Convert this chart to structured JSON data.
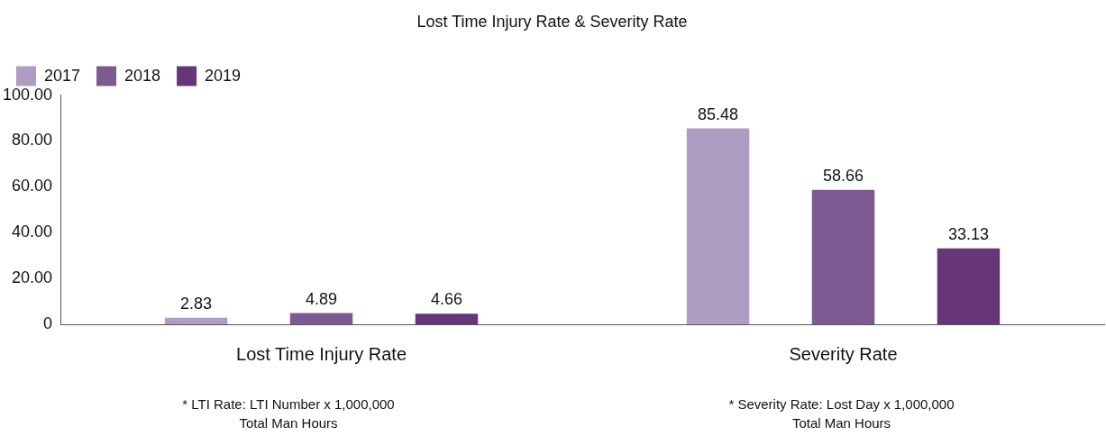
{
  "chart_data": {
    "type": "bar",
    "title": "Lost Time Injury Rate & Severity Rate",
    "categories": [
      "Lost Time Injury Rate",
      "Severity Rate"
    ],
    "series": [
      {
        "name": "2017",
        "color": "#ae9cc2",
        "values": [
          2.83,
          85.48
        ]
      },
      {
        "name": "2018",
        "color": "#7d5a92",
        "values": [
          4.89,
          58.66
        ]
      },
      {
        "name": "2019",
        "color": "#663679",
        "values": [
          4.66,
          33.13
        ]
      }
    ],
    "ylim": [
      0,
      100
    ],
    "yticks": [
      {
        "value": 0,
        "label": "0"
      },
      {
        "value": 20,
        "label": "20.00"
      },
      {
        "value": 40,
        "label": "40.00"
      },
      {
        "value": 60,
        "label": "60.00"
      },
      {
        "value": 80,
        "label": "80.00"
      },
      {
        "value": 100,
        "label": "100.00"
      }
    ],
    "grid": false,
    "legend": "top left",
    "data_labels": true,
    "annotations": [
      "* LTI Rate: LTI Number x 1,000,000",
      "Total Man Hours",
      "* Severity Rate: Lost Day x 1,000,000",
      "Total Man Hours"
    ]
  }
}
